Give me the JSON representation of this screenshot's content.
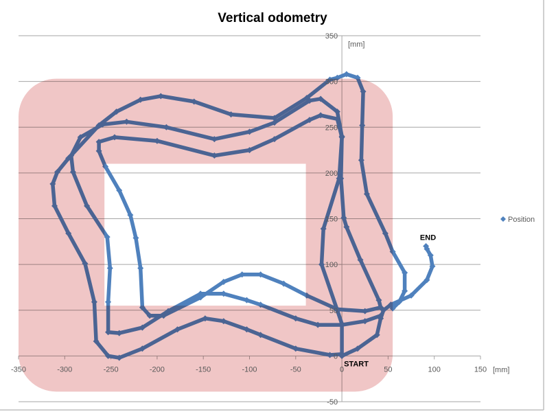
{
  "chart_data": {
    "type": "scatter",
    "title": "Vertical odometry",
    "x_unit_label": "[mm]",
    "y_unit_label": "[mm]",
    "xlim": [
      -350,
      150
    ],
    "ylim": [
      -50,
      350
    ],
    "x_ticks": [
      -350,
      -300,
      -250,
      -200,
      -150,
      -100,
      -50,
      0,
      50,
      100,
      150
    ],
    "y_ticks": [
      -50,
      0,
      50,
      100,
      150,
      200,
      250,
      300,
      350
    ],
    "grid": "horizontal",
    "legend_position": "right",
    "colors": {
      "series": "#4f81bd",
      "region": "#f0c6c6",
      "grid": "#a6a6a6"
    },
    "annotations": [
      {
        "text": "START",
        "x": 0,
        "y": 0
      },
      {
        "text": "END",
        "x": 92,
        "y": 120
      }
    ],
    "region": {
      "outer": {
        "x": [
          -350,
          55
        ],
        "y": [
          -39,
          303
        ]
      },
      "inner": {
        "x": [
          -257,
          -39
        ],
        "y": [
          55,
          210
        ]
      }
    },
    "series": [
      {
        "name": "Position",
        "marker": "diamond",
        "segments": [
          [
            [
              0,
              0
            ],
            [
              17,
              8
            ],
            [
              38,
              23
            ],
            [
              42,
              41
            ],
            [
              45,
              50
            ],
            [
              53,
              56
            ]
          ],
          [
            [
              0,
              2
            ],
            [
              -13,
              1
            ],
            [
              -50,
              8
            ],
            [
              -88,
              23
            ],
            [
              -103,
              29
            ],
            [
              -128,
              38
            ],
            [
              -148,
              41
            ],
            [
              -178,
              29
            ],
            [
              -216,
              8
            ],
            [
              -241,
              -2
            ],
            [
              -253,
              0
            ],
            [
              -266,
              16
            ],
            [
              -268,
              59
            ],
            [
              -278,
              101
            ],
            [
              -296,
              134
            ],
            [
              -311,
              164
            ],
            [
              -313,
              188
            ],
            [
              -308,
              201
            ],
            [
              -296,
              216
            ],
            [
              -263,
              252
            ],
            [
              -244,
              267
            ],
            [
              -218,
              280
            ],
            [
              -196,
              284
            ],
            [
              -160,
              278
            ],
            [
              -120,
              264
            ],
            [
              -73,
              260
            ],
            [
              -38,
              282
            ],
            [
              -13,
              302
            ],
            [
              -5,
              304
            ],
            [
              5,
              308
            ],
            [
              17,
              304
            ],
            [
              23,
              289
            ],
            [
              22,
              252
            ],
            [
              21,
              214
            ],
            [
              27,
              177
            ],
            [
              47,
              134
            ],
            [
              55,
              114
            ],
            [
              68,
              91
            ],
            [
              68,
              71
            ],
            [
              62,
              59
            ],
            [
              55,
              52
            ]
          ],
          [
            [
              42,
              44
            ],
            [
              25,
              38
            ],
            [
              0,
              34
            ],
            [
              -26,
              34
            ],
            [
              -50,
              41
            ],
            [
              -88,
              56
            ],
            [
              -103,
              61
            ],
            [
              -128,
              68
            ],
            [
              -153,
              68
            ],
            [
              -188,
              49
            ],
            [
              -216,
              31
            ],
            [
              -241,
              25
            ],
            [
              -253,
              26
            ],
            [
              -253,
              59
            ],
            [
              -251,
              96
            ],
            [
              -254,
              130
            ],
            [
              -276,
              164
            ],
            [
              -291,
              201
            ],
            [
              -293,
              219
            ],
            [
              -283,
              239
            ],
            [
              -259,
              253
            ],
            [
              -233,
              256
            ],
            [
              -190,
              250
            ],
            [
              -138,
              237
            ],
            [
              -100,
              245
            ],
            [
              -73,
              255
            ],
            [
              -35,
              279
            ],
            [
              -23,
              281
            ],
            [
              -5,
              267
            ],
            [
              0,
              240
            ],
            [
              -1,
              194
            ],
            [
              2,
              151
            ],
            [
              5,
              141
            ],
            [
              20,
              105
            ],
            [
              40,
              61
            ],
            [
              42,
              53
            ]
          ],
          [
            [
              42,
              53
            ],
            [
              25,
              49
            ],
            [
              -5,
              51
            ],
            [
              -38,
              66
            ],
            [
              -63,
              79
            ],
            [
              -88,
              89
            ],
            [
              -108,
              89
            ],
            [
              -128,
              81
            ],
            [
              -153,
              64
            ],
            [
              -193,
              44
            ],
            [
              -208,
              44
            ],
            [
              -216,
              53
            ],
            [
              -218,
              96
            ],
            [
              -223,
              129
            ],
            [
              -229,
              154
            ],
            [
              -241,
              181
            ],
            [
              -256,
              207
            ],
            [
              -263,
              224
            ],
            [
              -263,
              234
            ],
            [
              -246,
              239
            ],
            [
              -200,
              235
            ],
            [
              -138,
              219
            ],
            [
              -100,
              225
            ],
            [
              -73,
              237
            ],
            [
              -35,
              258
            ],
            [
              -23,
              263
            ],
            [
              -5,
              259
            ],
            [
              0,
              239
            ],
            [
              -3,
              194
            ],
            [
              -20,
              139
            ],
            [
              -22,
              100
            ],
            [
              -5,
              50
            ],
            [
              0,
              35
            ],
            [
              0,
              0
            ]
          ],
          [
            [
              53,
              56
            ],
            [
              75,
              66
            ],
            [
              92,
              83
            ],
            [
              98,
              98
            ],
            [
              96,
              110
            ],
            [
              92,
              117
            ],
            [
              91,
              120
            ]
          ]
        ]
      }
    ]
  }
}
